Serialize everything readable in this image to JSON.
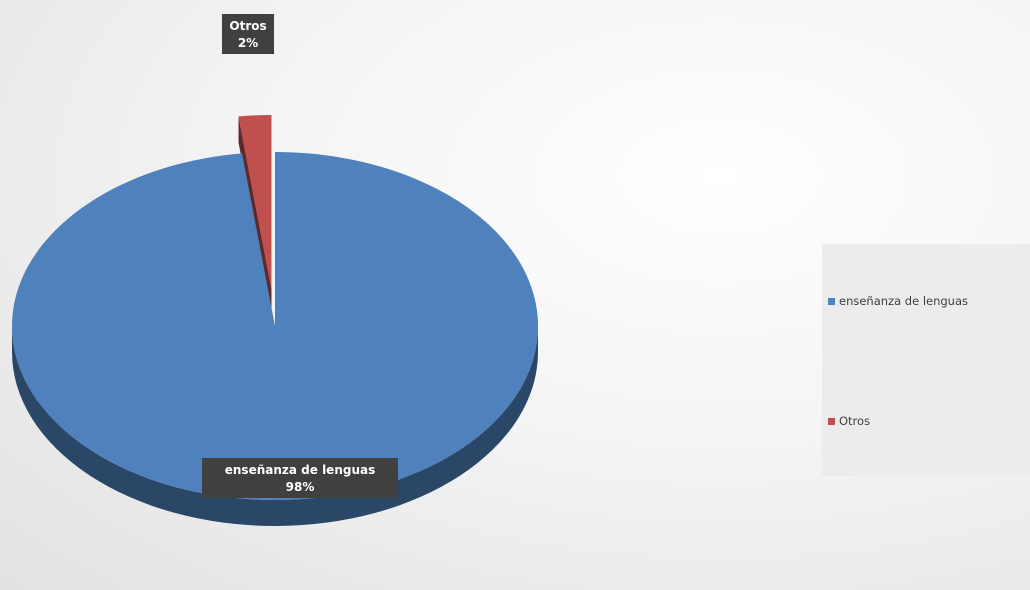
{
  "chart_data": {
    "type": "pie",
    "title": "",
    "slices": [
      {
        "label": "enseñanza de lenguas",
        "value": 98,
        "display": "98%",
        "color": "#4f81bd"
      },
      {
        "label": "Otros",
        "value": 2,
        "display": "2%",
        "color": "#c0504d"
      }
    ],
    "legend": {
      "position": "right"
    }
  }
}
